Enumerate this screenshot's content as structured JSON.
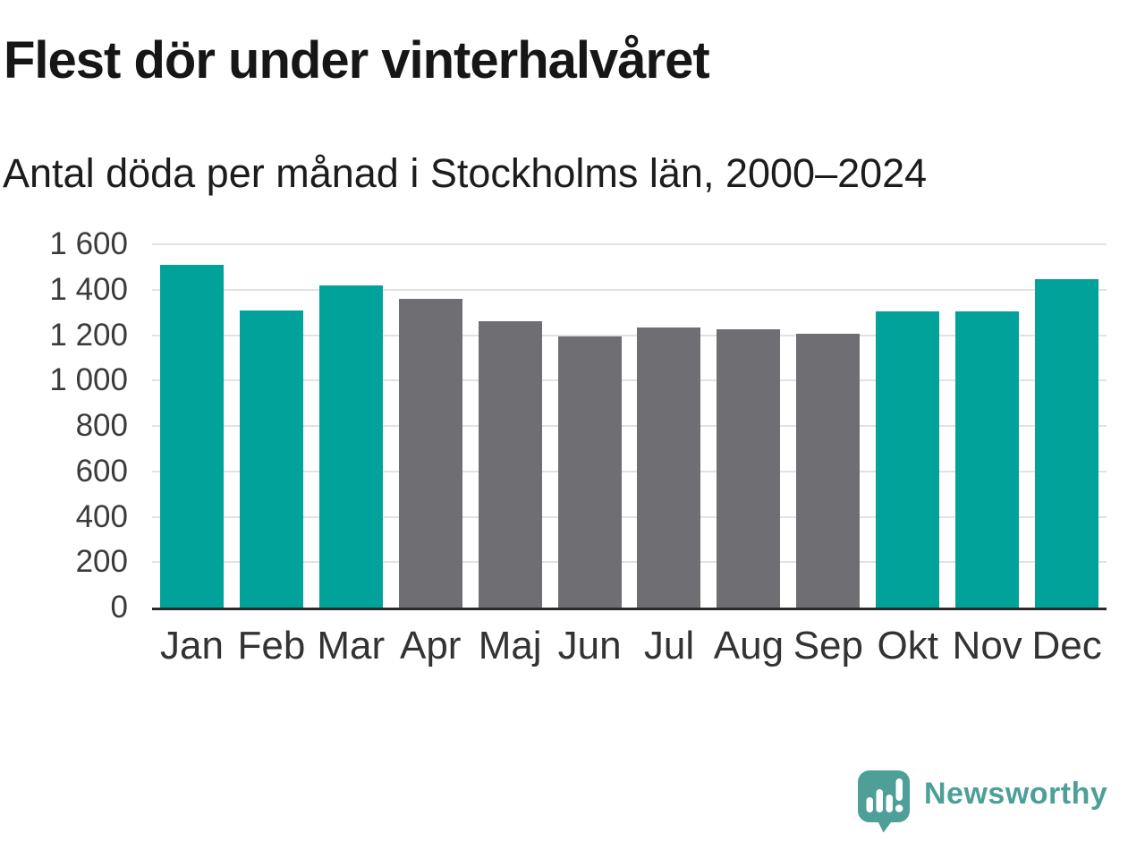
{
  "title": "Flest dör under vinterhalvåret",
  "subtitle": "Antal döda per månad i Stockholms län, 2000–2024",
  "brand": {
    "name": "Newsworthy",
    "color": "#4d9f98",
    "icon": "newsworthy-speech-bubble-bar-chart-icon"
  },
  "chart_data": {
    "type": "bar",
    "title": "Flest dör under vinterhalvåret",
    "subtitle": "Antal döda per månad i Stockholms län, 2000–2024",
    "categories": [
      "Jan",
      "Feb",
      "Mar",
      "Apr",
      "Maj",
      "Jun",
      "Jul",
      "Aug",
      "Sep",
      "Okt",
      "Nov",
      "Dec"
    ],
    "values": [
      1510,
      1310,
      1420,
      1360,
      1260,
      1195,
      1235,
      1225,
      1205,
      1305,
      1305,
      1445
    ],
    "bar_color_keys": [
      "winter",
      "winter",
      "winter",
      "summer",
      "summer",
      "summer",
      "summer",
      "summer",
      "summer",
      "winter",
      "winter",
      "winter"
    ],
    "palette": {
      "winter": "#00a29a",
      "summer": "#6f6e73"
    },
    "ylim": [
      0,
      1600
    ],
    "ytick_step": 200,
    "ytick_labels": [
      "0",
      "200",
      "400",
      "600",
      "800",
      "1 000",
      "1 200",
      "1 400",
      "1 600"
    ],
    "xlabel": "",
    "ylabel": "",
    "grid": true,
    "legend_position": "none",
    "gridline_color": "#e2e2e2",
    "axis_line_color": "#2a2a2a"
  }
}
